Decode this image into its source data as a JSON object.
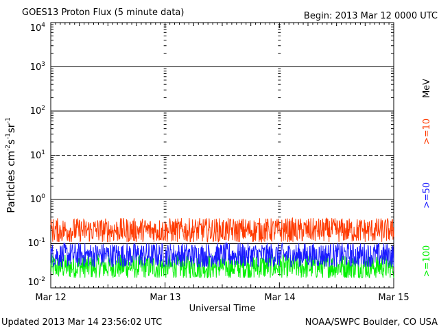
{
  "header": {
    "title": "GOES13 Proton Flux (5 minute data)",
    "begin": "Begin: 2013 Mar 12 0000 UTC"
  },
  "footer": {
    "updated": "Updated 2013 Mar 14 23:56:02 UTC",
    "credit": "NOAA/SWPC Boulder, CO USA"
  },
  "chart_data": {
    "type": "line",
    "title": "GOES13 Proton Flux (5 minute data)",
    "xlabel": "Universal Time",
    "ylabel": {
      "base": "Particles cm",
      "exp1": "-2",
      "s": "s",
      "exp2": "-1",
      "sr": "sr",
      "exp3": "-1"
    },
    "x_ticks": [
      "Mar 12",
      "Mar 13",
      "Mar 14",
      "Mar 15"
    ],
    "xlim_days": [
      0,
      3
    ],
    "y_scale": "log",
    "ylim": [
      0.01,
      10000
    ],
    "y_ticks": [
      {
        "base": "10",
        "exp": "-2"
      },
      {
        "base": "10",
        "exp": "-1"
      },
      {
        "base": "10",
        "exp": "0"
      },
      {
        "base": "10",
        "exp": "1"
      },
      {
        "base": "10",
        "exp": "2"
      },
      {
        "base": "10",
        "exp": "3"
      },
      {
        "base": "10",
        "exp": "4"
      }
    ],
    "reference_lines": [
      {
        "y": 0.1,
        "style": "solid"
      },
      {
        "y": 1,
        "style": "solid"
      },
      {
        "y": 10,
        "style": "dashed"
      },
      {
        "y": 100,
        "style": "solid"
      },
      {
        "y": 1000,
        "style": "solid"
      }
    ],
    "unit_label": "MeV",
    "series": [
      {
        "name": ">=10",
        "color": "#ff3a00",
        "base": 0.2,
        "min": 0.11,
        "max": 0.38
      },
      {
        "name": ">=50",
        "color": "#1a1aff",
        "base": 0.055,
        "min": 0.03,
        "max": 0.13
      },
      {
        "name": ">=100",
        "color": "#00f000",
        "base": 0.03,
        "min": 0.017,
        "max": 0.07
      }
    ]
  }
}
